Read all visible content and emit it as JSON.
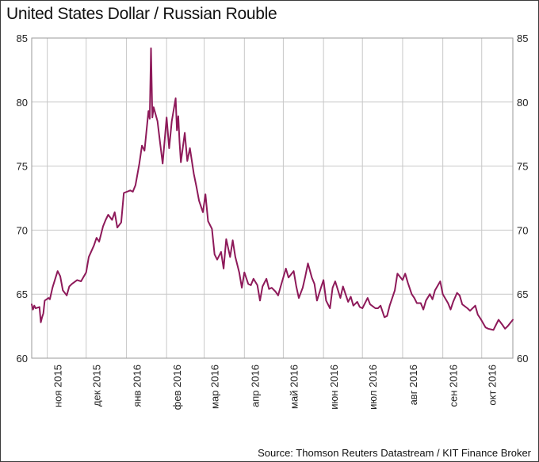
{
  "chart_data": {
    "type": "line",
    "title": "United States Dollar / Russian Rouble",
    "source": "Source: Thomson Reuters Datastream / KIT Finance Broker",
    "ylim": [
      60,
      85
    ],
    "yticks": [
      "60",
      "65",
      "70",
      "75",
      "80",
      "85"
    ],
    "y_axis_both_sides": true,
    "grid": "horizontal and vertical",
    "xtick_labels": [
      "ноя 2015",
      "дек 2015",
      "янв 2016",
      "фев 2016",
      "мар 2016",
      "апр 2016",
      "май 2016",
      "июн 2016",
      "июл 2016",
      "авг 2016",
      "сен 2016",
      "окт 2016"
    ],
    "x": [
      "2015-10-20",
      "2015-10-21",
      "2015-10-22",
      "2015-10-23",
      "2015-10-26",
      "2015-10-27",
      "2015-10-28",
      "2015-10-29",
      "2015-10-30",
      "2015-11-02",
      "2015-11-03",
      "2015-11-05",
      "2015-11-09",
      "2015-11-11",
      "2015-11-13",
      "2015-11-16",
      "2015-11-18",
      "2015-11-20",
      "2015-11-24",
      "2015-11-27",
      "2015-12-01",
      "2015-12-03",
      "2015-12-07",
      "2015-12-09",
      "2015-12-11",
      "2015-12-14",
      "2015-12-16",
      "2015-12-18",
      "2015-12-21",
      "2015-12-23",
      "2015-12-25",
      "2015-12-28",
      "2015-12-30",
      "2016-01-04",
      "2016-01-06",
      "2016-01-08",
      "2016-01-11",
      "2016-01-13",
      "2016-01-15",
      "2016-01-18",
      "2016-01-19",
      "2016-01-20",
      "2016-01-21",
      "2016-01-22",
      "2016-01-25",
      "2016-01-27",
      "2016-01-29",
      "2016-02-01",
      "2016-02-03",
      "2016-02-05",
      "2016-02-08",
      "2016-02-09",
      "2016-02-10",
      "2016-02-11",
      "2016-02-12",
      "2016-02-15",
      "2016-02-17",
      "2016-02-19",
      "2016-02-22",
      "2016-02-24",
      "2016-02-26",
      "2016-02-29",
      "2016-03-02",
      "2016-03-04",
      "2016-03-07",
      "2016-03-09",
      "2016-03-11",
      "2016-03-14",
      "2016-03-16",
      "2016-03-18",
      "2016-03-21",
      "2016-03-23",
      "2016-03-25",
      "2016-03-28",
      "2016-03-30",
      "2016-04-01",
      "2016-04-04",
      "2016-04-06",
      "2016-04-08",
      "2016-04-11",
      "2016-04-13",
      "2016-04-15",
      "2016-04-18",
      "2016-04-20",
      "2016-04-22",
      "2016-04-25",
      "2016-04-27",
      "2016-04-29",
      "2016-05-03",
      "2016-05-05",
      "2016-05-09",
      "2016-05-11",
      "2016-05-13",
      "2016-05-16",
      "2016-05-18",
      "2016-05-20",
      "2016-05-23",
      "2016-05-25",
      "2016-05-27",
      "2016-05-30",
      "2016-06-01",
      "2016-06-03",
      "2016-06-06",
      "2016-06-08",
      "2016-06-10",
      "2016-06-14",
      "2016-06-16",
      "2016-06-20",
      "2016-06-22",
      "2016-06-24",
      "2016-06-27",
      "2016-06-29",
      "2016-07-01",
      "2016-07-05",
      "2016-07-07",
      "2016-07-11",
      "2016-07-13",
      "2016-07-15",
      "2016-07-18",
      "2016-07-20",
      "2016-07-22",
      "2016-07-26",
      "2016-07-28",
      "2016-08-01",
      "2016-08-03",
      "2016-08-05",
      "2016-08-08",
      "2016-08-10",
      "2016-08-12",
      "2016-08-15",
      "2016-08-17",
      "2016-08-19",
      "2016-08-22",
      "2016-08-24",
      "2016-08-26",
      "2016-08-30",
      "2016-09-01",
      "2016-09-05",
      "2016-09-07",
      "2016-09-09",
      "2016-09-12",
      "2016-09-14",
      "2016-09-16",
      "2016-09-20",
      "2016-09-22",
      "2016-09-26",
      "2016-09-28",
      "2016-09-30",
      "2016-10-04",
      "2016-10-06",
      "2016-10-10",
      "2016-10-12",
      "2016-10-14",
      "2016-10-17",
      "2016-10-19",
      "2016-10-21",
      "2016-10-25"
    ],
    "series": [
      {
        "color": "#8e1a5a",
        "values": [
          64.2,
          63.8,
          64.1,
          63.9,
          64.0,
          62.8,
          63.2,
          63.5,
          64.5,
          64.7,
          64.6,
          65.5,
          66.8,
          66.4,
          65.3,
          64.9,
          65.6,
          65.8,
          66.1,
          66.0,
          66.7,
          67.9,
          68.8,
          69.4,
          69.1,
          70.3,
          70.8,
          71.2,
          70.8,
          71.4,
          70.2,
          70.6,
          72.9,
          73.1,
          73.0,
          73.5,
          75.2,
          76.6,
          76.2,
          79.3,
          78.7,
          84.2,
          78.8,
          79.6,
          78.5,
          76.8,
          75.2,
          78.8,
          76.4,
          78.5,
          80.3,
          77.8,
          78.9,
          76.9,
          75.3,
          77.6,
          75.4,
          76.4,
          74.4,
          73.4,
          72.3,
          71.4,
          72.8,
          70.7,
          70.1,
          68.1,
          67.7,
          68.3,
          67.0,
          69.3,
          67.9,
          69.2,
          67.9,
          66.7,
          65.5,
          66.7,
          65.8,
          65.7,
          66.2,
          65.7,
          64.5,
          65.6,
          66.2,
          65.4,
          65.5,
          65.2,
          64.9,
          65.6,
          67.0,
          66.3,
          66.8,
          65.6,
          64.7,
          65.5,
          66.4,
          67.4,
          66.3,
          65.8,
          64.5,
          65.5,
          66.1,
          64.5,
          63.9,
          65.5,
          66.0,
          64.7,
          65.6,
          64.4,
          64.8,
          64.1,
          64.4,
          64.0,
          63.9,
          64.7,
          64.2,
          63.9,
          63.9,
          64.1,
          63.2,
          63.3,
          64.1,
          65.3,
          66.6,
          66.1,
          66.6,
          65.9,
          65.0,
          64.7,
          64.3,
          64.3,
          63.8,
          64.5,
          65.0,
          64.6,
          65.3,
          66.0,
          65.0,
          64.3,
          63.8,
          64.4,
          65.1,
          64.9,
          64.2,
          63.9,
          63.7,
          64.1,
          63.4,
          63.1,
          62.4,
          62.3,
          62.2,
          62.6,
          63.0,
          62.6,
          62.3,
          62.5,
          63.0
        ]
      }
    ]
  }
}
